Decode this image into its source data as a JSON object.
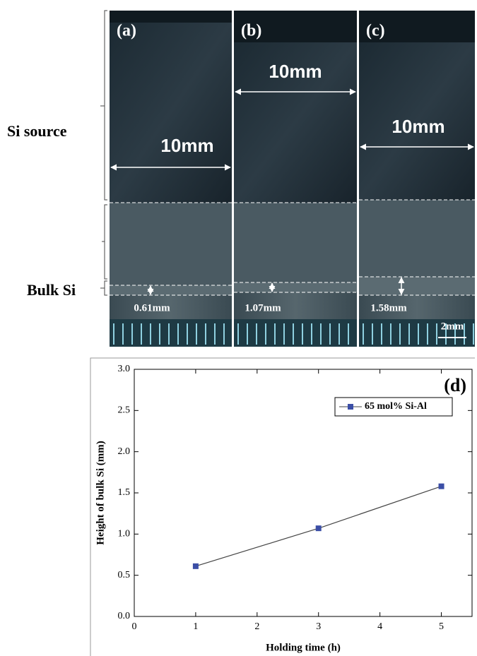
{
  "micrographs": {
    "region_labels": [
      "Si source",
      "Bulk Si"
    ],
    "panels": [
      {
        "label": "(a)",
        "width_label": "10mm",
        "height_label": "0.61mm"
      },
      {
        "label": "(b)",
        "width_label": "10mm",
        "height_label": "1.07mm"
      },
      {
        "label": "(c)",
        "width_label": "10mm",
        "height_label": "1.58mm"
      }
    ],
    "scale_bar": "2mm"
  },
  "chart_data": {
    "type": "line",
    "annotation": "(d)",
    "x_label": "Holding time (h)",
    "y_label": "Height of bulk Si (mm)",
    "x": [
      1,
      3,
      5
    ],
    "series": [
      {
        "name": "65 mol% Si-Al",
        "color": "#3b4ea6",
        "values": [
          0.61,
          1.07,
          1.58
        ]
      }
    ],
    "xlim": [
      0,
      5.5
    ],
    "xticks": [
      0,
      1,
      2,
      3,
      4,
      5
    ],
    "ylim": [
      0,
      3
    ],
    "yticks": [
      {
        "value": 0,
        "label": "0.0"
      },
      0.5,
      {
        "value": 1,
        "label": "1.0"
      },
      1.5,
      {
        "value": 2,
        "label": "2.0"
      },
      2.5,
      {
        "value": 3,
        "label": "3.0"
      }
    ],
    "legend": "upper right",
    "grid": false
  }
}
